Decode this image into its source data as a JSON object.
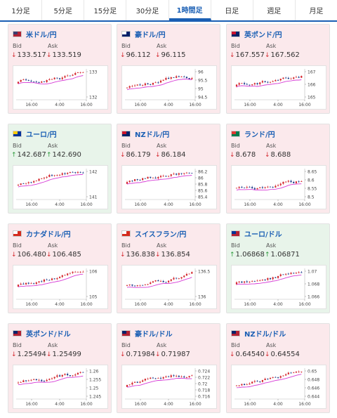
{
  "tabs": [
    "1分足",
    "5分足",
    "15分足",
    "30分足",
    "1時間足",
    "日足",
    "週足",
    "月足"
  ],
  "active_tab_index": 4,
  "labels": {
    "bid": "Bid",
    "ask": "Ask"
  },
  "colors": {
    "accent": "#1a5fb4",
    "down": "#d4282e",
    "up": "#2a9a3a",
    "card_down_bg": "#fbe9ec",
    "card_up_bg": "#e8f4ea",
    "ma_line": "#d63ad6"
  },
  "cards": [
    {
      "pair": "米ドル/円",
      "bid": "133.517",
      "ask": "133.519",
      "bid_dir": "down",
      "ask_dir": "down",
      "trend": "down",
      "flag": [
        "#b22234",
        "#3c3b6e"
      ],
      "chart": {
        "x_ticks": [
          "16:00",
          "4:00",
          "16:00"
        ],
        "y_ticks": [
          "133",
          "132"
        ]
      }
    },
    {
      "pair": "豪ドル/円",
      "bid": "96.112",
      "ask": "96.115",
      "bid_dir": "down",
      "ask_dir": "down",
      "trend": "down",
      "flag": [
        "#012169",
        "#ffffff"
      ],
      "chart": {
        "x_ticks": [
          "16:00",
          "4:00",
          "16:00"
        ],
        "y_ticks": [
          "96",
          "95.5",
          "95",
          "94.5"
        ]
      }
    },
    {
      "pair": "英ポンド/円",
      "bid": "167.557",
      "ask": "167.562",
      "bid_dir": "down",
      "ask_dir": "down",
      "trend": "down",
      "flag": [
        "#012169",
        "#c8102e"
      ],
      "chart": {
        "x_ticks": [
          "16:00",
          "4:00",
          "16:00"
        ],
        "y_ticks": [
          "167",
          "166",
          "165"
        ]
      }
    },
    {
      "pair": "ユーロ/円",
      "bid": "142.687",
      "ask": "142.690",
      "bid_dir": "up",
      "ask_dir": "up",
      "trend": "up",
      "flag": [
        "#003399",
        "#ffcc00"
      ],
      "chart": {
        "x_ticks": [
          "16:00",
          "4:00",
          "16:00"
        ],
        "y_ticks": [
          "142",
          "141"
        ]
      }
    },
    {
      "pair": "NZドル/円",
      "bid": "86.179",
      "ask": "86.184",
      "bid_dir": "down",
      "ask_dir": "down",
      "trend": "down",
      "flag": [
        "#012169",
        "#cc142b"
      ],
      "chart": {
        "x_ticks": [
          "16:00",
          "4:00",
          "16:00"
        ],
        "y_ticks": [
          "86.2",
          "86",
          "85.8",
          "85.6",
          "85.4"
        ]
      }
    },
    {
      "pair": "ランド/円",
      "bid": "8.678",
      "ask": "8.688",
      "bid_dir": "down",
      "ask_dir": "down",
      "trend": "down",
      "flag": [
        "#007a4d",
        "#de3831"
      ],
      "chart": {
        "x_ticks": [
          "16:00",
          "4:00",
          "16:00"
        ],
        "y_ticks": [
          "8.65",
          "8.6",
          "8.55",
          "8.5"
        ]
      }
    },
    {
      "pair": "カナダドル/円",
      "bid": "106.480",
      "ask": "106.485",
      "bid_dir": "down",
      "ask_dir": "down",
      "trend": "down",
      "flag": [
        "#d52b1e",
        "#ffffff"
      ],
      "chart": {
        "x_ticks": [
          "16:00",
          "4:00",
          "16:00"
        ],
        "y_ticks": [
          "106",
          "105"
        ]
      }
    },
    {
      "pair": "スイスフラン/円",
      "bid": "136.838",
      "ask": "136.854",
      "bid_dir": "down",
      "ask_dir": "down",
      "trend": "down",
      "flag": [
        "#d52b1e",
        "#ffffff"
      ],
      "chart": {
        "x_ticks": [
          "16:00",
          "4:00",
          "16:00"
        ],
        "y_ticks": [
          "136.5",
          "136"
        ]
      }
    },
    {
      "pair": "ユーロ/ドル",
      "bid": "1.06868",
      "ask": "1.06871",
      "bid_dir": "up",
      "ask_dir": "up",
      "trend": "up",
      "flag": [
        "#b22234",
        "#003399"
      ],
      "chart": {
        "x_ticks": [
          "16:00",
          "4:00",
          "16:00"
        ],
        "y_ticks": [
          "1.07",
          "1.068",
          "1.066"
        ]
      }
    },
    {
      "pair": "英ポンド/ドル",
      "bid": "1.25494",
      "ask": "1.25499",
      "bid_dir": "down",
      "ask_dir": "down",
      "trend": "down",
      "flag": [
        "#b22234",
        "#012169"
      ],
      "chart": {
        "x_ticks": [
          "16:00",
          "4:00",
          "16:00"
        ],
        "y_ticks": [
          "1.26",
          "1.255",
          "1.25",
          "1.245"
        ]
      }
    },
    {
      "pair": "豪ドル/ドル",
      "bid": "0.71984",
      "ask": "0.71987",
      "bid_dir": "down",
      "ask_dir": "down",
      "trend": "down",
      "flag": [
        "#b22234",
        "#012169"
      ],
      "chart": {
        "x_ticks": [
          "16:00",
          "4:00",
          "16:00"
        ],
        "y_ticks": [
          "0.724",
          "0.722",
          "0.72",
          "0.718",
          "0.716"
        ]
      }
    },
    {
      "pair": "NZドル/ドル",
      "bid": "0.64540",
      "ask": "0.64554",
      "bid_dir": "down",
      "ask_dir": "down",
      "trend": "down",
      "flag": [
        "#b22234",
        "#012169"
      ],
      "chart": {
        "x_ticks": [
          "16:00",
          "4:00",
          "16:00"
        ],
        "y_ticks": [
          "0.65",
          "0.648",
          "0.646",
          "0.644"
        ]
      }
    }
  ]
}
